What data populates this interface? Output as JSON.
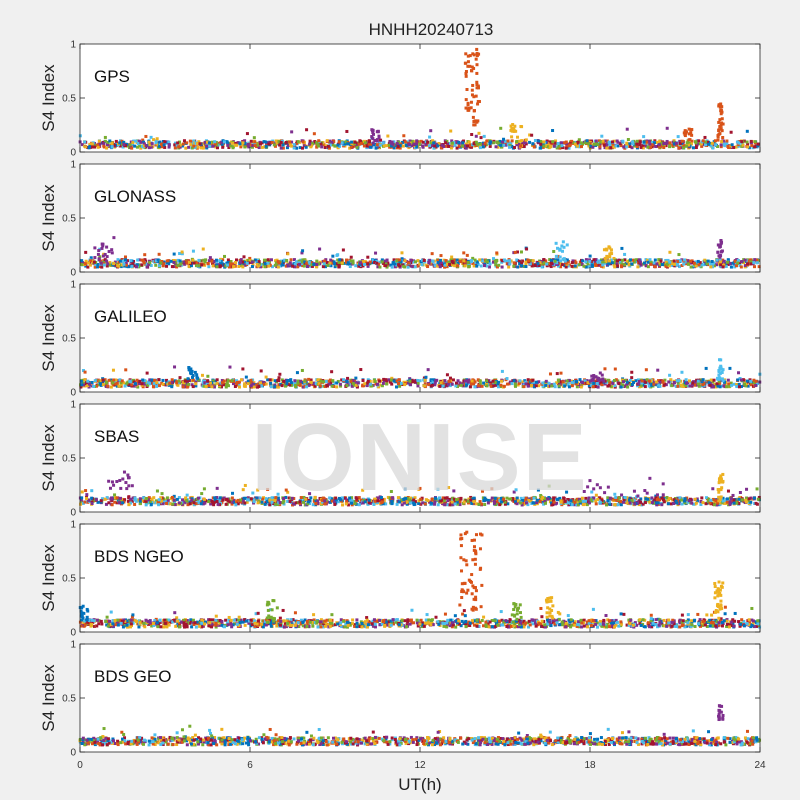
{
  "chart_data": {
    "type": "scatter",
    "title": "HNHH20240713",
    "xlabel": "UT(h)",
    "ylabel": "S4 Index",
    "xlim": [
      0,
      24
    ],
    "xticks": [
      0,
      6,
      12,
      18,
      24
    ],
    "ylim": [
      0,
      1
    ],
    "yticks": [
      0,
      0.5,
      1
    ],
    "watermark": "IONISE",
    "series_colors": [
      "#0072BD",
      "#D95319",
      "#EDB120",
      "#7E2F8E",
      "#77AC30",
      "#4DBEEE",
      "#A2142F"
    ],
    "panels": [
      {
        "label": "GPS",
        "baseline": 0.07,
        "spikes": [
          {
            "x": [
              13.6,
              14.1
            ],
            "y": [
              0.25,
              0.96
            ],
            "series": 1
          },
          {
            "x": [
              21.3,
              21.6
            ],
            "y": [
              0.1,
              0.22
            ],
            "series": 1
          },
          {
            "x": [
              22.5,
              22.7
            ],
            "y": [
              0.1,
              0.45
            ],
            "series": 1
          },
          {
            "x": [
              15.2,
              15.6
            ],
            "y": [
              0.1,
              0.26
            ],
            "series": 2
          },
          {
            "x": [
              10.2,
              10.6
            ],
            "y": [
              0.1,
              0.22
            ],
            "series": 3
          }
        ]
      },
      {
        "label": "GLONASS",
        "baseline": 0.08,
        "spikes": [
          {
            "x": [
              0.5,
              1.2
            ],
            "y": [
              0.1,
              0.32
            ],
            "series": 3
          },
          {
            "x": [
              16.8,
              17.2
            ],
            "y": [
              0.1,
              0.29
            ],
            "series": 5
          },
          {
            "x": [
              22.5,
              22.7
            ],
            "y": [
              0.1,
              0.3
            ],
            "series": 3
          },
          {
            "x": [
              18.5,
              18.8
            ],
            "y": [
              0.1,
              0.25
            ],
            "series": 2
          }
        ]
      },
      {
        "label": "GALILEO",
        "baseline": 0.08,
        "spikes": [
          {
            "x": [
              3.8,
              4.2
            ],
            "y": [
              0.1,
              0.24
            ],
            "series": 0
          },
          {
            "x": [
              18.0,
              18.5
            ],
            "y": [
              0.1,
              0.18
            ],
            "series": 3
          },
          {
            "x": [
              22.5,
              22.7
            ],
            "y": [
              0.1,
              0.3
            ],
            "series": 5
          }
        ]
      },
      {
        "label": "SBAS",
        "baseline": 0.1,
        "spikes": [
          {
            "x": [
              1.0,
              1.8
            ],
            "y": [
              0.2,
              0.37
            ],
            "series": 3
          },
          {
            "x": [
              17.8,
              20.8
            ],
            "y": [
              0.12,
              0.32
            ],
            "series": 3
          },
          {
            "x": [
              22.5,
              22.7
            ],
            "y": [
              0.1,
              0.35
            ],
            "series": 2
          }
        ]
      },
      {
        "label": "BDS NGEO",
        "baseline": 0.08,
        "spikes": [
          {
            "x": [
              13.4,
              14.2
            ],
            "y": [
              0.2,
              0.93
            ],
            "series": 1
          },
          {
            "x": [
              16.4,
              16.7
            ],
            "y": [
              0.1,
              0.32
            ],
            "series": 2
          },
          {
            "x": [
              15.3,
              15.6
            ],
            "y": [
              0.1,
              0.27
            ],
            "series": 4
          },
          {
            "x": [
              6.6,
              7.0
            ],
            "y": [
              0.1,
              0.3
            ],
            "series": 4
          },
          {
            "x": [
              22.4,
              22.7
            ],
            "y": [
              0.1,
              0.47
            ],
            "series": 2
          },
          {
            "x": [
              0.0,
              0.3
            ],
            "y": [
              0.1,
              0.26
            ],
            "series": 0
          }
        ]
      },
      {
        "label": "BDS GEO",
        "baseline": 0.1,
        "spikes": [
          {
            "x": [
              22.5,
              22.7
            ],
            "y": [
              0.3,
              0.43
            ],
            "series": 3
          }
        ]
      }
    ]
  }
}
